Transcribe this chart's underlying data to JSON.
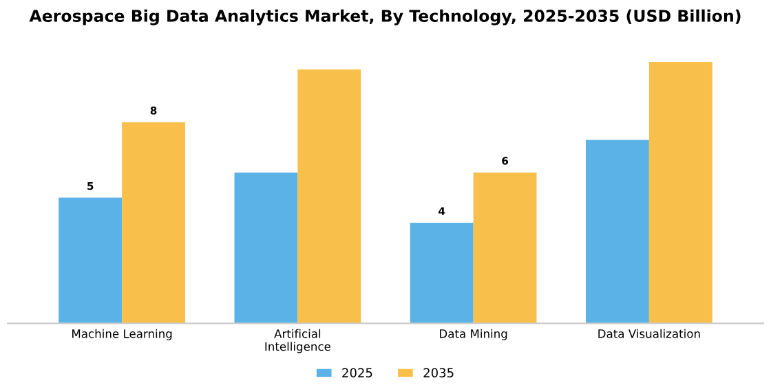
{
  "chart_data": {
    "type": "bar",
    "title": "Aerospace Big Data Analytics Market, By Technology, 2025-2035 (USD Billion)",
    "categories": [
      "Machine Learning",
      "Artificial\nIntelligence",
      "Data Mining",
      "Data Visualization"
    ],
    "series": [
      {
        "name": "2025",
        "color": "#5ab2e6",
        "values": [
          5,
          6.0,
          4,
          7.3
        ],
        "value_labels": [
          "5",
          null,
          "4",
          null
        ]
      },
      {
        "name": "2035",
        "color": "#f8c04a",
        "values": [
          8,
          10.1,
          6,
          10.4
        ],
        "value_labels": [
          "8",
          null,
          "6",
          null
        ]
      }
    ],
    "legend": "bottom",
    "grid": false
  }
}
